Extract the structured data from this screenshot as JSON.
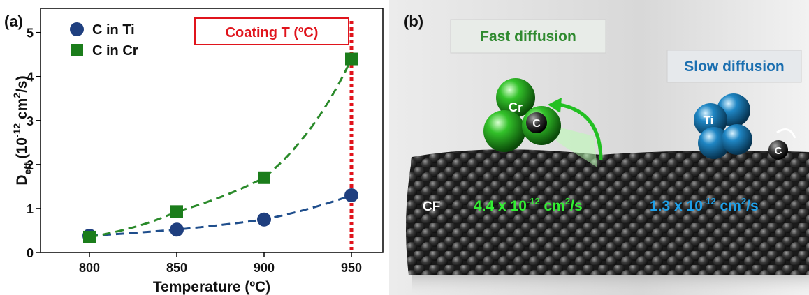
{
  "chart_data": {
    "type": "scatter",
    "panel_label": "(a)",
    "x_label": "Temperature (ºC)",
    "y_label": [
      {
        "text": "D"
      },
      {
        "text": "eff",
        "shift": "sub"
      },
      {
        "text": " (10"
      },
      {
        "text": "-12",
        "shift": "super"
      },
      {
        "text": " cm"
      },
      {
        "text": "2",
        "shift": "super"
      },
      {
        "text": "/s)"
      }
    ],
    "x": [
      800,
      850,
      900,
      950
    ],
    "series": [
      {
        "name": "C in Ti",
        "color": "#1f3f7f",
        "marker": "circle",
        "trend_color": "#1f4e8c",
        "values": [
          0.38,
          0.52,
          0.75,
          1.3
        ]
      },
      {
        "name": "C in Cr",
        "color": "#1b7d1b",
        "marker": "square",
        "trend_color": "#2a8a2a",
        "values": [
          0.35,
          0.93,
          1.7,
          4.4
        ]
      }
    ],
    "xlim": [
      772,
      968
    ],
    "ylim": [
      0,
      5.55
    ],
    "xticks": [
      800,
      850,
      900,
      950
    ],
    "yticks": [
      0,
      1,
      2,
      3,
      4,
      5
    ],
    "legend": "upper left",
    "vline": {
      "value": 950,
      "color": "#e0141c",
      "label": "Coating T (ºC)"
    }
  },
  "panel_b": {
    "panel_label": "(b)",
    "fast": "Fast diffusion",
    "slow": "Slow diffusion",
    "cr": "Cr",
    "ti": "Ti",
    "carbon_1": "C",
    "carbon_2": "C",
    "fiber": "CF",
    "rate_cr": [
      "4.4 x 10",
      "-12",
      " cm",
      "2",
      "/s"
    ],
    "rate_ti": [
      "1.3 x 10",
      "-12",
      " cm",
      "2",
      "/s"
    ]
  }
}
